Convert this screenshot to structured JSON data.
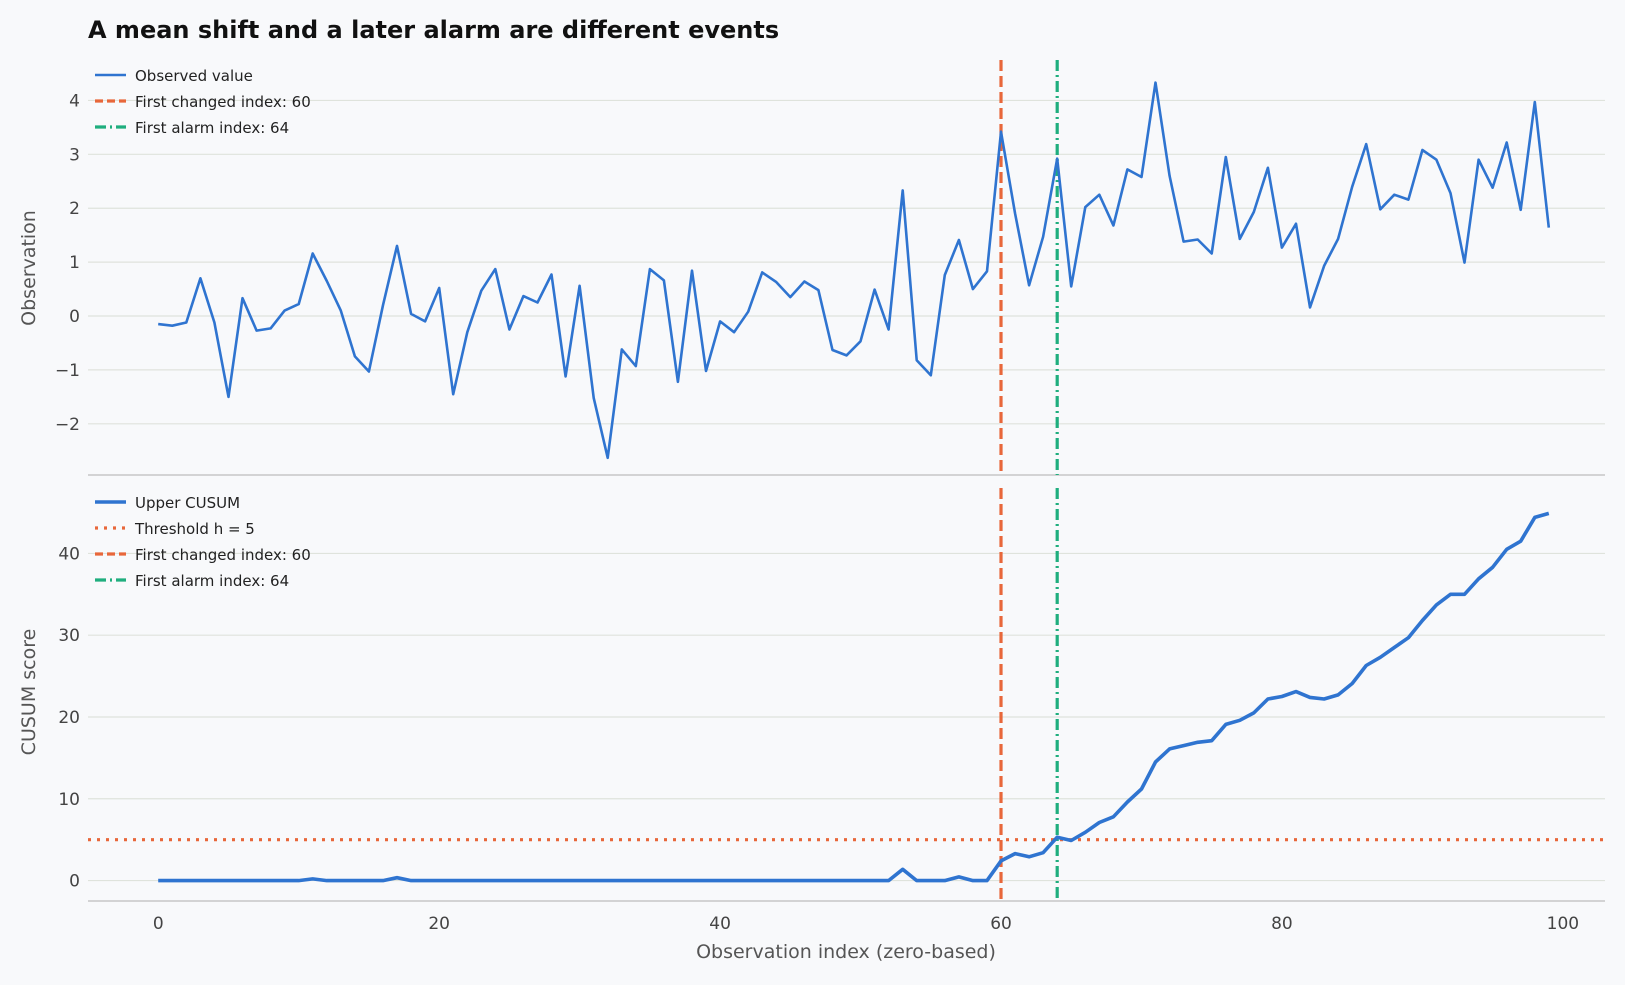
{
  "title": "A mean shift and a later alarm are different events",
  "colors": {
    "series": "#2f74d0",
    "change": "#e8673a",
    "alarm": "#1fae7e",
    "grid": "#dfe3dc",
    "background": "#f8f9fb"
  },
  "chart_data": [
    {
      "type": "line",
      "ylabel": "Observation",
      "xlim": [
        -5,
        103
      ],
      "ylim": [
        -2.95,
        4.75
      ],
      "yticks": [
        -2,
        -1,
        0,
        1,
        2,
        3,
        4
      ],
      "ytick_labels": [
        "−2",
        "−1",
        "0",
        "1",
        "2",
        "3",
        "4"
      ],
      "grid": true,
      "legend_position": "top-left",
      "series": [
        {
          "name": "Observed value",
          "x_start": 0,
          "x_step": 1,
          "values": [
            -0.15,
            -0.18,
            -0.12,
            0.7,
            -0.12,
            -1.5,
            0.33,
            -0.27,
            -0.23,
            0.1,
            0.22,
            1.16,
            0.65,
            0.1,
            -0.75,
            -1.03,
            0.2,
            1.3,
            0.04,
            -0.1,
            0.52,
            -1.45,
            -0.3,
            0.47,
            0.87,
            -0.25,
            0.37,
            0.25,
            0.77,
            -1.12,
            0.56,
            -1.52,
            -2.63,
            -0.62,
            -0.93,
            0.87,
            0.66,
            -1.22,
            0.84,
            -1.02,
            -0.1,
            -0.3,
            0.08,
            0.81,
            0.63,
            0.35,
            0.64,
            0.48,
            -0.63,
            -0.73,
            -0.47,
            0.49,
            -0.25,
            2.33,
            -0.82,
            -1.1,
            0.76,
            1.41,
            0.5,
            0.83,
            3.42,
            1.9,
            0.57,
            1.47,
            2.92,
            0.55,
            2.02,
            2.25,
            1.68,
            2.72,
            2.58,
            4.33,
            2.6,
            1.38,
            1.42,
            1.16,
            2.95,
            1.43,
            1.93,
            2.75,
            1.27,
            1.71,
            0.16,
            0.93,
            1.43,
            2.4,
            3.19,
            1.98,
            2.25,
            2.16,
            3.08,
            2.9,
            2.28,
            0.99,
            2.9,
            2.38,
            3.22,
            1.97,
            3.97,
            1.64
          ]
        }
      ],
      "vlines": [
        {
          "name": "First changed index: 60",
          "x": 60,
          "style": "dashed"
        },
        {
          "name": "First alarm index: 64",
          "x": 64,
          "style": "dashdot"
        }
      ]
    },
    {
      "type": "line",
      "xlabel": "Observation index (zero-based)",
      "ylabel": "CUSUM score",
      "xlim": [
        -5,
        103
      ],
      "ylim": [
        -2.5,
        48
      ],
      "xticks": [
        0,
        20,
        40,
        60,
        80,
        100
      ],
      "xtick_labels": [
        "0",
        "20",
        "40",
        "60",
        "80",
        "100"
      ],
      "yticks": [
        0,
        10,
        20,
        30,
        40
      ],
      "ytick_labels": [
        "0",
        "10",
        "20",
        "30",
        "40"
      ],
      "grid": true,
      "legend_position": "top-left",
      "series": [
        {
          "name": "Upper CUSUM",
          "x_start": 0,
          "x_step": 1,
          "values": [
            0,
            0,
            0,
            0,
            0,
            0,
            0,
            0,
            0,
            0,
            0,
            0.2,
            0,
            0,
            0,
            0,
            0,
            0.35,
            0,
            0,
            0,
            0,
            0,
            0,
            0,
            0,
            0,
            0,
            0,
            0,
            0,
            0,
            0,
            0,
            0,
            0,
            0,
            0,
            0,
            0,
            0,
            0,
            0,
            0,
            0,
            0,
            0,
            0,
            0,
            0,
            0,
            0,
            0,
            1.38,
            0,
            0,
            0,
            0.45,
            0,
            0,
            2.4,
            3.3,
            2.9,
            3.4,
            5.3,
            4.9,
            5.9,
            7.1,
            7.8,
            9.6,
            11.2,
            14.5,
            16.1,
            16.5,
            16.9,
            17.1,
            19.1,
            19.6,
            20.5,
            22.2,
            22.5,
            23.1,
            22.4,
            22.2,
            22.7,
            24.1,
            26.3,
            27.3,
            28.5,
            29.7,
            31.8,
            33.7,
            35.0,
            35.0,
            36.9,
            38.3,
            40.5,
            41.5,
            44.4,
            44.9
          ]
        },
        {
          "name": "Threshold h = 5",
          "hline": 5,
          "style": "dotted"
        }
      ],
      "vlines": [
        {
          "name": "First changed index: 60",
          "x": 60,
          "style": "dashed"
        },
        {
          "name": "First alarm index: 64",
          "x": 64,
          "style": "dashdot"
        }
      ]
    }
  ]
}
